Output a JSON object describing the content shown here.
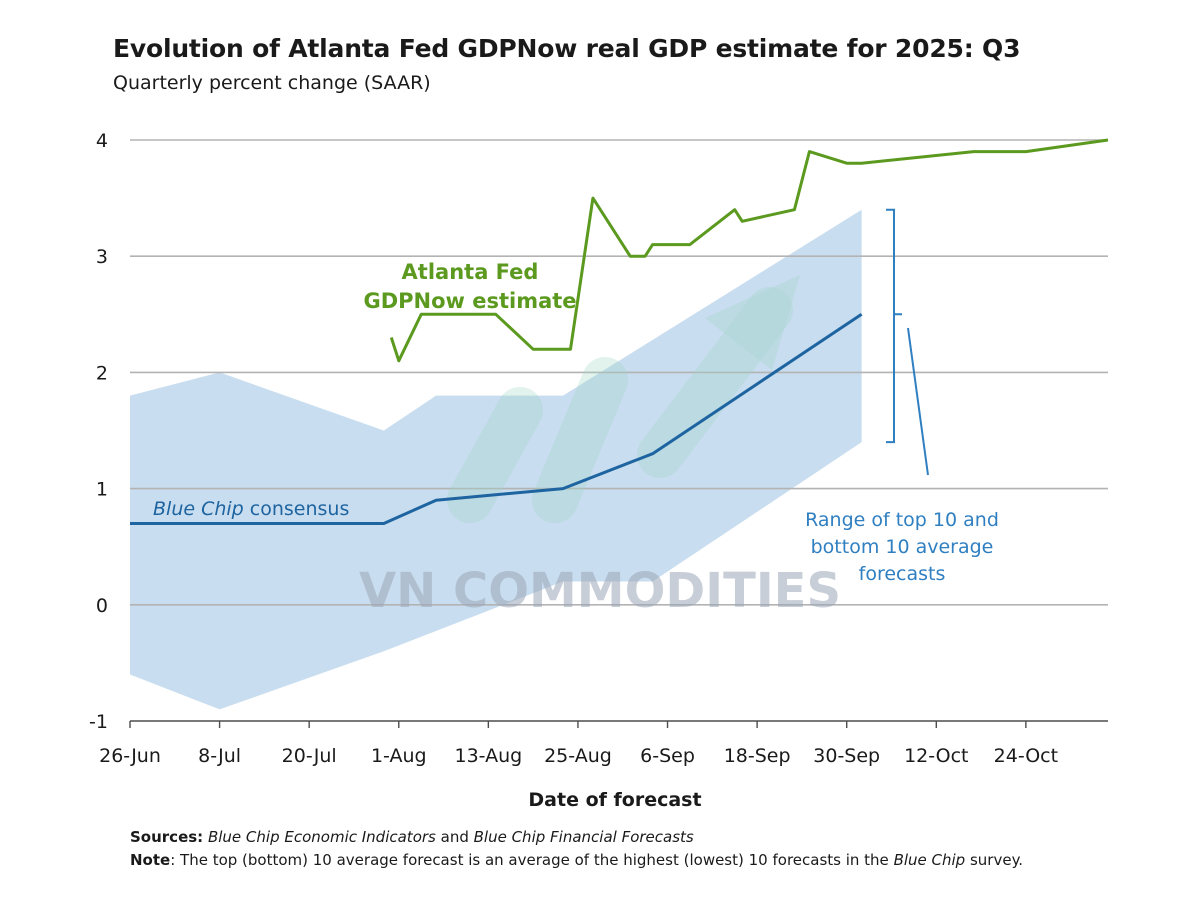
{
  "title": "Evolution of Atlanta Fed GDPNow real GDP estimate for 2025: Q3",
  "subtitle": "Quarterly percent change (SAAR)",
  "chart_data": {
    "type": "line",
    "xlabel": "Date of forecast",
    "ylabel": "",
    "ylim": [
      -1,
      4
    ],
    "yticks": [
      -1,
      0,
      1,
      2,
      3,
      4
    ],
    "xlim": [
      "2025-06-26",
      "2025-11-04"
    ],
    "xticks": [
      {
        "date": "2025-06-26",
        "label": "26-Jun"
      },
      {
        "date": "2025-07-08",
        "label": "8-Jul"
      },
      {
        "date": "2025-07-20",
        "label": "20-Jul"
      },
      {
        "date": "2025-08-01",
        "label": "1-Aug"
      },
      {
        "date": "2025-08-13",
        "label": "13-Aug"
      },
      {
        "date": "2025-08-25",
        "label": "25-Aug"
      },
      {
        "date": "2025-09-06",
        "label": "6-Sep"
      },
      {
        "date": "2025-09-18",
        "label": "18-Sep"
      },
      {
        "date": "2025-09-30",
        "label": "30-Sep"
      },
      {
        "date": "2025-10-12",
        "label": "12-Oct"
      },
      {
        "date": "2025-10-24",
        "label": "24-Oct"
      }
    ],
    "grid": true,
    "series": [
      {
        "name": "Atlanta Fed GDPNow estimate",
        "label": [
          "Atlanta Fed",
          "GDPNow estimate"
        ],
        "color": "#5b9a1f",
        "points": [
          [
            "2025-07-31",
            2.3
          ],
          [
            "2025-08-01",
            2.1
          ],
          [
            "2025-08-04",
            2.5
          ],
          [
            "2025-08-14",
            2.5
          ],
          [
            "2025-08-19",
            2.2
          ],
          [
            "2025-08-24",
            2.2
          ],
          [
            "2025-08-27",
            3.5
          ],
          [
            "2025-09-01",
            3.0
          ],
          [
            "2025-09-03",
            3.0
          ],
          [
            "2025-09-04",
            3.1
          ],
          [
            "2025-09-09",
            3.1
          ],
          [
            "2025-09-15",
            3.4
          ],
          [
            "2025-09-16",
            3.3
          ],
          [
            "2025-09-23",
            3.4
          ],
          [
            "2025-09-25",
            3.9
          ],
          [
            "2025-09-30",
            3.8
          ],
          [
            "2025-10-02",
            3.8
          ],
          [
            "2025-10-17",
            3.9
          ],
          [
            "2025-10-24",
            3.9
          ],
          [
            "2025-11-04",
            4.0
          ]
        ]
      },
      {
        "name": "Blue Chip consensus",
        "label_italic": "Blue Chip",
        "label_rest": " consensus",
        "color": "#1e64a0",
        "points": [
          [
            "2025-06-26",
            0.7
          ],
          [
            "2025-07-30",
            0.7
          ],
          [
            "2025-08-06",
            0.9
          ],
          [
            "2025-08-23",
            1.0
          ],
          [
            "2025-09-04",
            1.3
          ],
          [
            "2025-10-02",
            2.5
          ]
        ]
      }
    ],
    "band": {
      "name": "Range of top 10 and bottom 10 average forecasts",
      "label": [
        "Range of top 10 and",
        "bottom 10 average",
        "forecasts"
      ],
      "color": "#b8d3ea",
      "upper": [
        [
          "2025-06-26",
          1.8
        ],
        [
          "2025-07-08",
          2.0
        ],
        [
          "2025-07-30",
          1.5
        ],
        [
          "2025-08-06",
          1.8
        ],
        [
          "2025-08-23",
          1.8
        ],
        [
          "2025-10-02",
          3.4
        ]
      ],
      "lower": [
        [
          "2025-06-26",
          -0.6
        ],
        [
          "2025-07-08",
          -0.9
        ],
        [
          "2025-07-30",
          -0.4
        ],
        [
          "2025-08-23",
          0.2
        ],
        [
          "2025-09-04",
          0.2
        ],
        [
          "2025-10-02",
          1.4
        ]
      ]
    }
  },
  "watermark": "VN COMMODITIES",
  "footnotes": {
    "sources_label": "Sources:",
    "sources_i1": "Blue Chip Economic Indicators",
    "sources_and": " and ",
    "sources_i2": "Blue Chip Financial Forecasts",
    "note_label": "Note",
    "note_text": ": The top (bottom) 10 average forecast is an average of the highest (lowest) 10 forecasts in the ",
    "note_i": "Blue Chip",
    "note_end": " survey."
  }
}
